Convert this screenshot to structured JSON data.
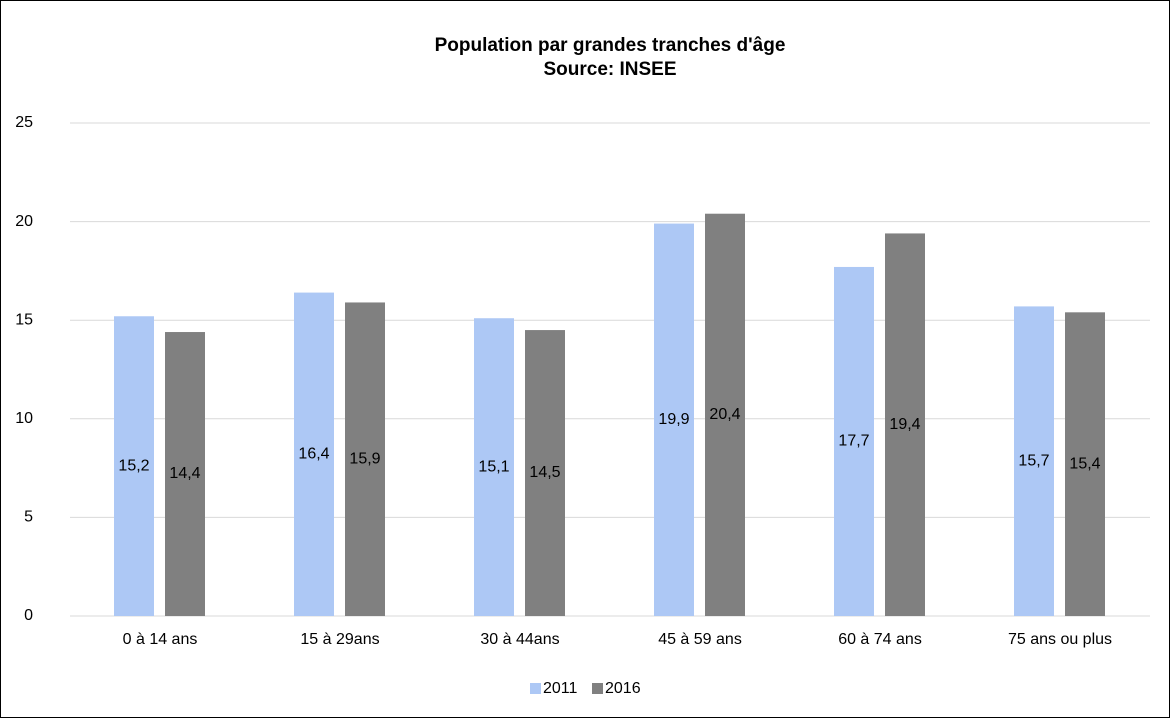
{
  "chart_data": {
    "type": "bar",
    "title": "Population par grandes tranches d'âge",
    "subtitle": "Source: INSEE",
    "categories": [
      "0 à 14 ans",
      "15 à 29ans",
      "30 à 44ans",
      "45 à 59 ans",
      "60 à 74 ans",
      "75 ans ou plus"
    ],
    "series": [
      {
        "name": "2011",
        "color": "#adc8f5",
        "values": [
          15.2,
          16.4,
          15.1,
          19.9,
          17.7,
          15.7
        ],
        "value_labels": [
          "15,2",
          "16,4",
          "15,1",
          "19,9",
          "17,7",
          "15,7"
        ]
      },
      {
        "name": "2016",
        "color": "#808080",
        "values": [
          14.4,
          15.9,
          14.5,
          20.4,
          19.4,
          15.4
        ],
        "value_labels": [
          "14,4",
          "15,9",
          "14,5",
          "20,4",
          "19,4",
          "15,4"
        ]
      }
    ],
    "ylim": [
      0,
      25
    ],
    "yticks": [
      0,
      5,
      10,
      15,
      20,
      25
    ],
    "grid": true,
    "legend": "bottom"
  }
}
